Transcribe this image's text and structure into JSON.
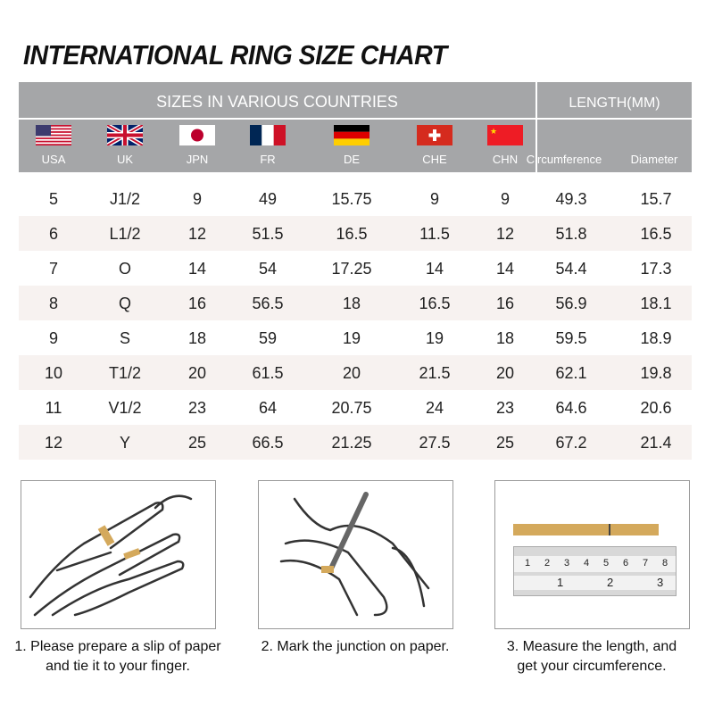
{
  "title": "INTERNATIONAL RING SIZE CHART",
  "header": {
    "sizes_label": "SIZES IN VARIOUS COUNTRIES",
    "length_label": "LENGTH(MM)",
    "countries": [
      {
        "code": "USA",
        "flag": "us-flag"
      },
      {
        "code": "UK",
        "flag": "uk-flag"
      },
      {
        "code": "JPN",
        "flag": "japan-flag"
      },
      {
        "code": "FR",
        "flag": "france-flag"
      },
      {
        "code": "DE",
        "flag": "germany-flag"
      },
      {
        "code": "CHE",
        "flag": "switzerland-flag"
      },
      {
        "code": "CHN",
        "flag": "china-flag"
      }
    ],
    "length_cols": [
      "Circumference",
      "Diameter"
    ]
  },
  "rows": [
    [
      "5",
      "J1/2",
      "9",
      "49",
      "15.75",
      "9",
      "9",
      "49.3",
      "15.7"
    ],
    [
      "6",
      "L1/2",
      "12",
      "51.5",
      "16.5",
      "11.5",
      "12",
      "51.8",
      "16.5"
    ],
    [
      "7",
      "O",
      "14",
      "54",
      "17.25",
      "14",
      "14",
      "54.4",
      "17.3"
    ],
    [
      "8",
      "Q",
      "16",
      "56.5",
      "18",
      "16.5",
      "16",
      "56.9",
      "18.1"
    ],
    [
      "9",
      "S",
      "18",
      "59",
      "19",
      "19",
      "18",
      "59.5",
      "18.9"
    ],
    [
      "10",
      "T1/2",
      "20",
      "61.5",
      "20",
      "21.5",
      "20",
      "62.1",
      "19.8"
    ],
    [
      "11",
      "V1/2",
      "23",
      "64",
      "20.75",
      "24",
      "23",
      "64.6",
      "20.6"
    ],
    [
      "12",
      "Y",
      "25",
      "66.5",
      "21.25",
      "27.5",
      "25",
      "67.2",
      "21.4"
    ]
  ],
  "steps": [
    {
      "line1": "1. Please prepare a slip of paper",
      "line2": "and tie it to your finger."
    },
    {
      "line1": "2. Mark the junction on paper.",
      "line2": ""
    },
    {
      "line1": "3. Measure the length, and",
      "line2": "get your circumference."
    }
  ],
  "ruler": {
    "top_marks": [
      "1",
      "2",
      "3",
      "4",
      "5",
      "6",
      "7",
      "8"
    ],
    "bottom_marks": [
      "1",
      "2",
      "3"
    ]
  },
  "colors": {
    "header": "#a5a6a8",
    "alt_row": "#f7f2f0",
    "paper": "#d4a95c"
  }
}
